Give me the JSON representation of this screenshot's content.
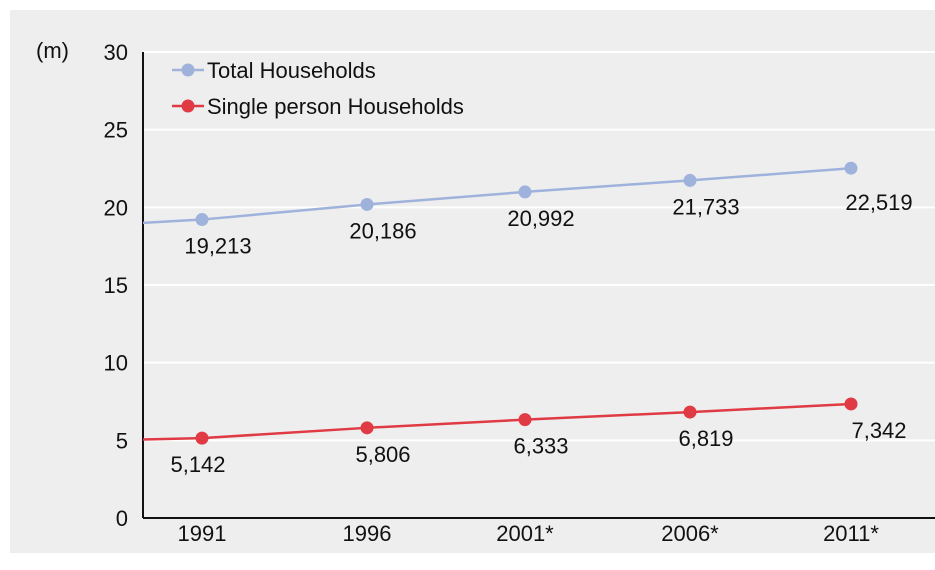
{
  "chart_data": {
    "type": "line",
    "title": "",
    "xlabel": "",
    "ylabel": "(m)",
    "ylim": [
      0,
      30
    ],
    "yticks": [
      "0",
      "5",
      "10",
      "15",
      "20",
      "25",
      "30"
    ],
    "categories": [
      "1991",
      "1996",
      "2001*",
      "2006*",
      "2011*"
    ],
    "grid": true,
    "legend_position": "top-left",
    "series": [
      {
        "name": "Total Households",
        "color": "#9fb2dc",
        "values": [
          19.213,
          20.186,
          20.992,
          21.733,
          22.519
        ],
        "labels": [
          "19,213",
          "20,186",
          "20,992",
          "21,733",
          "22,519"
        ]
      },
      {
        "name": "Single person Households",
        "color": "#e03a44",
        "values": [
          5.142,
          5.806,
          6.333,
          6.819,
          7.342
        ],
        "labels": [
          "5,142",
          "5,806",
          "6,333",
          "6,819",
          "7,342"
        ]
      }
    ]
  }
}
